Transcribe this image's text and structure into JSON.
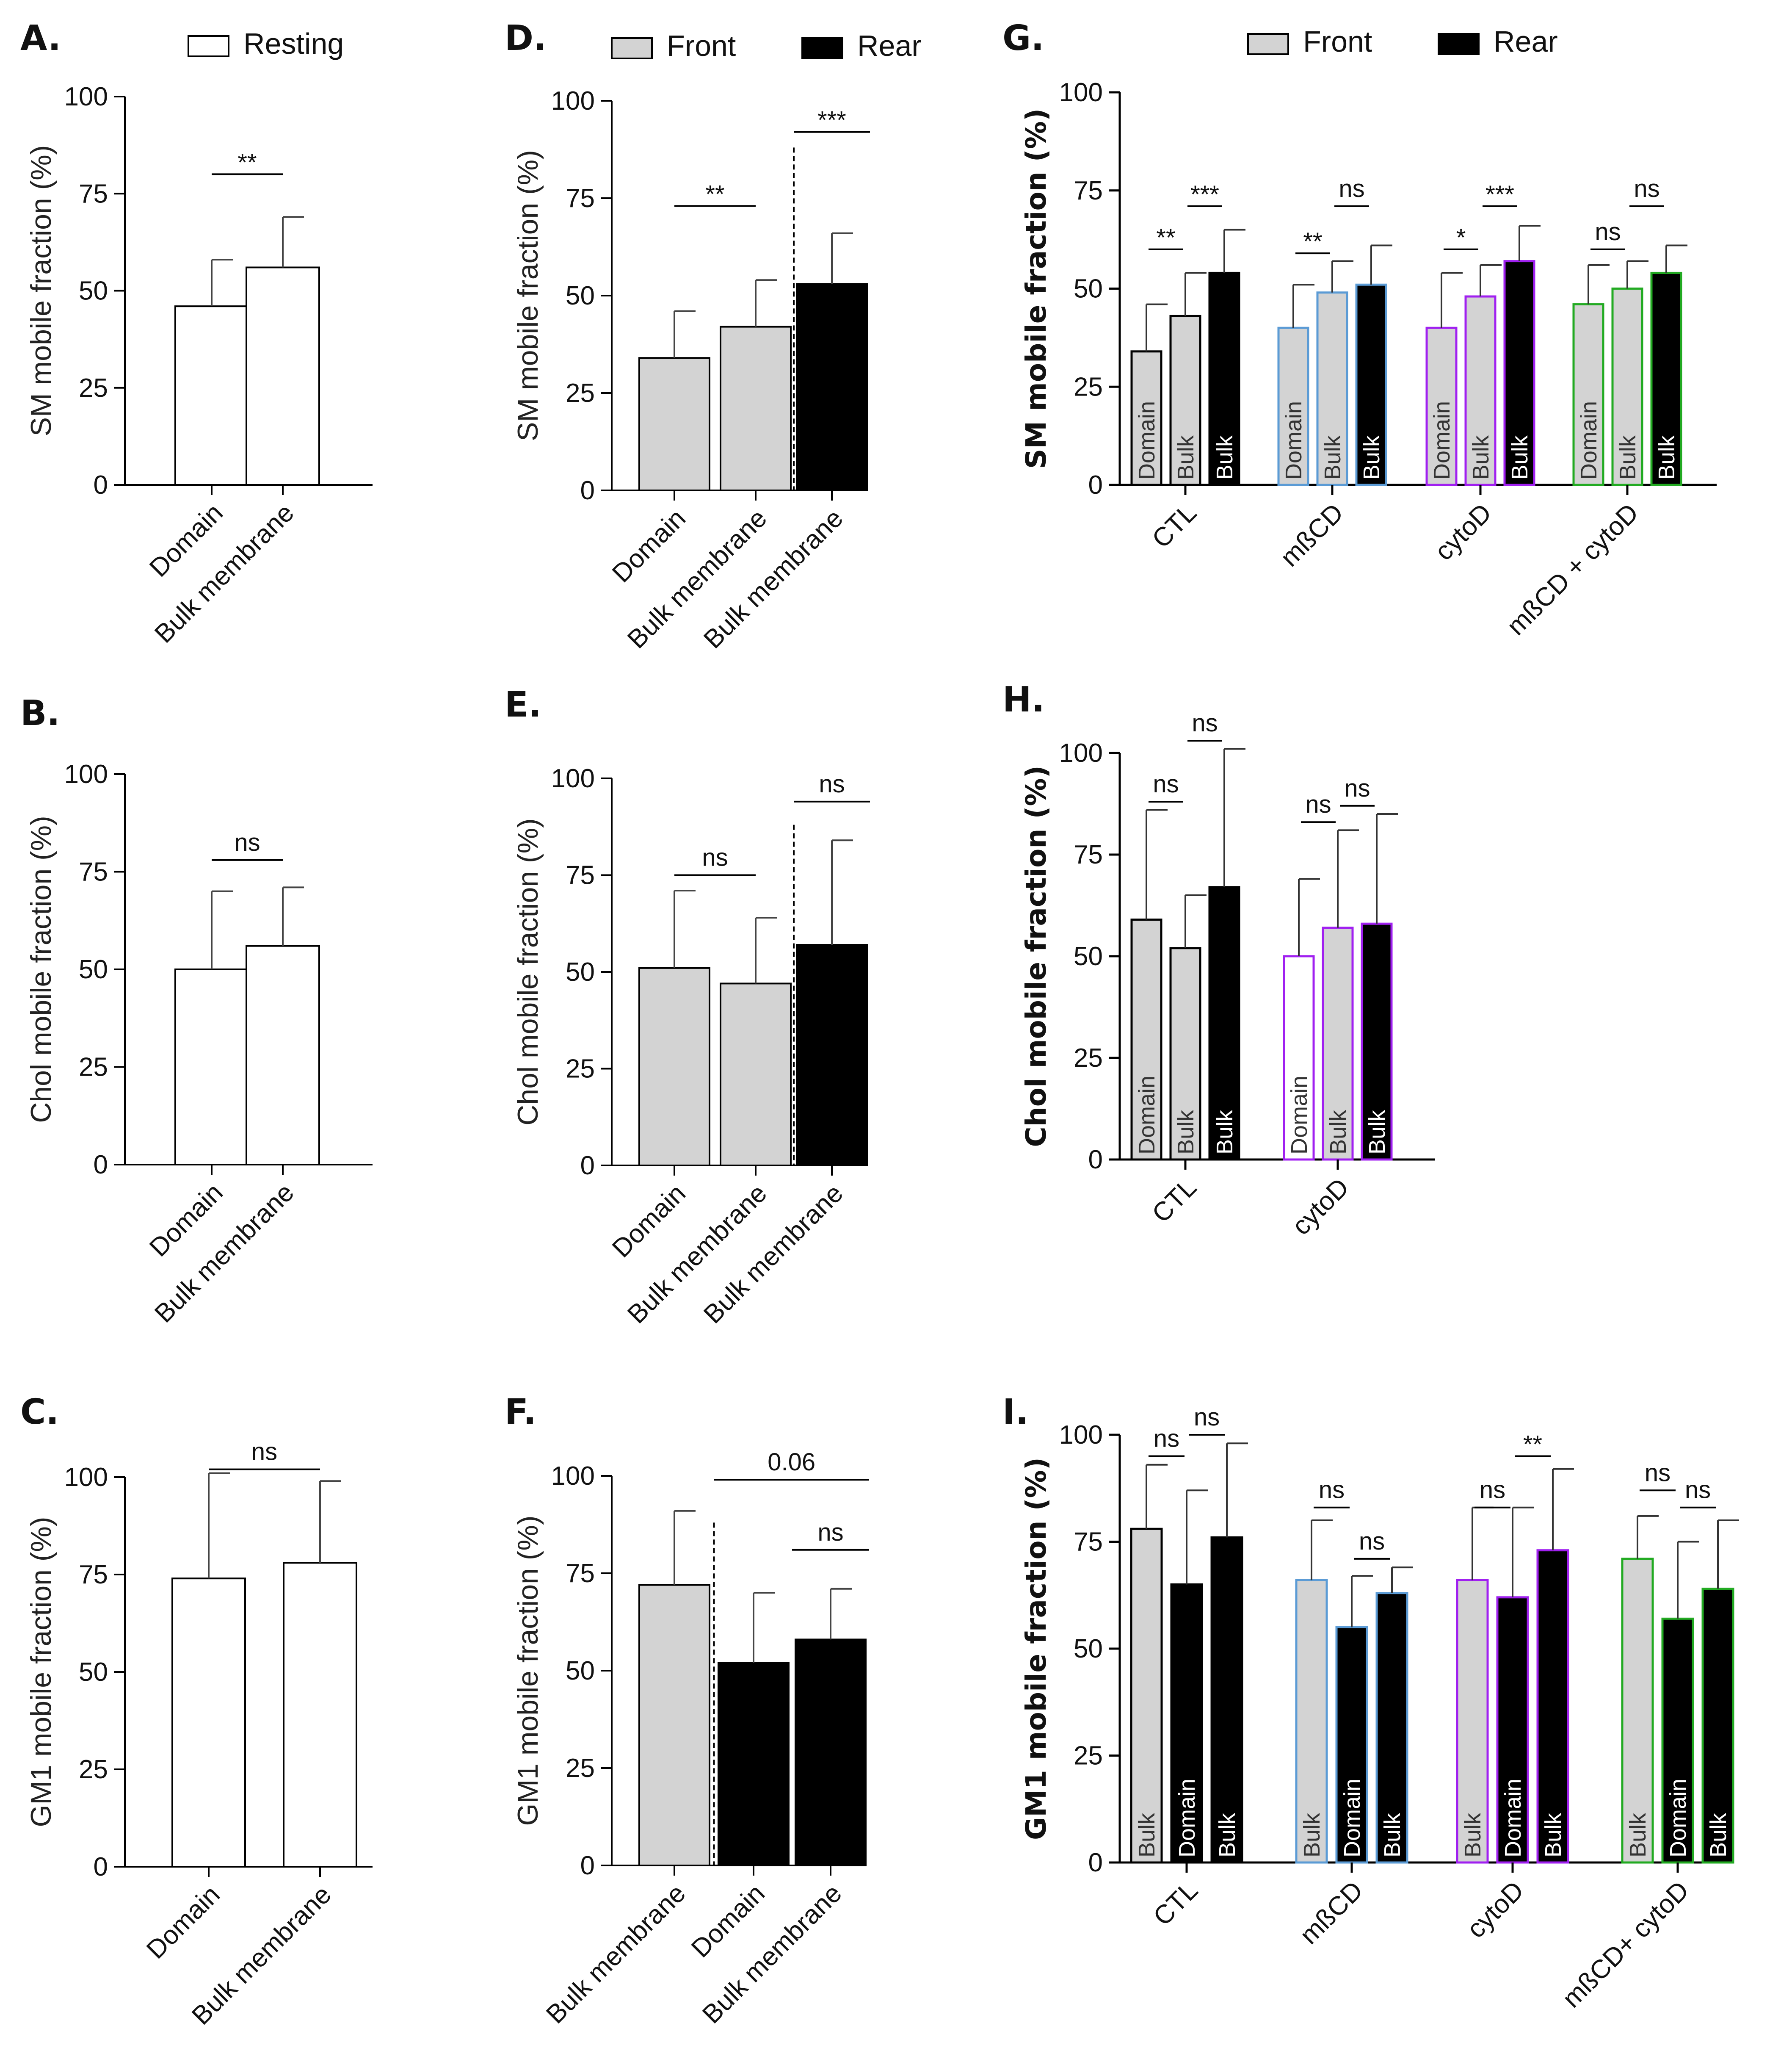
{
  "colors": {
    "front": "#d3d3d3",
    "rear": "#000000",
    "resting": "#ffffff",
    "mbcd": "#5b9bd5",
    "cytod": "#a020f0",
    "combo": "#22aa22"
  },
  "legends": {
    "A": [
      {
        "label": "Resting",
        "fill": "#ffffff"
      }
    ],
    "D": [
      {
        "label": "Front",
        "fill": "#d3d3d3"
      },
      {
        "label": "Rear",
        "fill": "#000000"
      }
    ],
    "G": [
      {
        "label": "Front",
        "fill": "#d3d3d3"
      },
      {
        "label": "Rear",
        "fill": "#000000"
      }
    ]
  },
  "chart_data": [
    {
      "id": "A",
      "label": "A.",
      "type": "bar",
      "ylabel": "SM mobile fraction (%)",
      "ylim": [
        0,
        100
      ],
      "yticks": [
        0,
        25,
        50,
        75,
        100
      ],
      "categories": [
        "Domain",
        "Bulk membrane"
      ],
      "bars": [
        {
          "value": 46,
          "err": 12,
          "fill": "#ffffff"
        },
        {
          "value": 56,
          "err": 13,
          "fill": "#ffffff"
        }
      ],
      "sig": [
        {
          "from": 0,
          "to": 1,
          "text": "**",
          "level": 80
        }
      ]
    },
    {
      "id": "B",
      "label": "B.",
      "type": "bar",
      "ylabel": "Chol mobile fraction (%)",
      "ylim": [
        0,
        100
      ],
      "yticks": [
        0,
        25,
        50,
        75,
        100
      ],
      "categories": [
        "Domain",
        "Bulk membrane"
      ],
      "bars": [
        {
          "value": 50,
          "err": 20,
          "fill": "#ffffff"
        },
        {
          "value": 56,
          "err": 15,
          "fill": "#ffffff"
        }
      ],
      "sig": [
        {
          "from": 0,
          "to": 1,
          "text": "ns",
          "level": 78
        }
      ]
    },
    {
      "id": "C",
      "label": "C.",
      "type": "bar",
      "ylabel": "GM1 mobile fraction (%)",
      "ylim": [
        0,
        100
      ],
      "yticks": [
        0,
        25,
        50,
        75,
        100
      ],
      "categories": [
        "Domain",
        "Bulk membrane"
      ],
      "bars": [
        {
          "value": 74,
          "err": 27,
          "fill": "#ffffff"
        },
        {
          "value": 78,
          "err": 21,
          "fill": "#ffffff"
        }
      ],
      "sig": [
        {
          "from": 0,
          "to": 1,
          "text": "ns",
          "level": 102
        }
      ]
    },
    {
      "id": "D",
      "label": "D.",
      "type": "bar",
      "ylabel": "SM mobile fraction (%)",
      "ylim": [
        0,
        100
      ],
      "yticks": [
        0,
        25,
        50,
        75,
        100
      ],
      "categories": [
        "Domain",
        "Bulk membrane",
        "Bulk membrane"
      ],
      "divider_after": 1,
      "bars": [
        {
          "value": 34,
          "err": 12,
          "fill": "#d3d3d3"
        },
        {
          "value": 42,
          "err": 12,
          "fill": "#d3d3d3"
        },
        {
          "value": 53,
          "err": 13,
          "fill": "#000000"
        }
      ],
      "sig": [
        {
          "from": 0,
          "to": 1,
          "text": "**",
          "level": 73
        },
        {
          "from": 1.5,
          "to": 2.5,
          "text": "***",
          "level": 92
        }
      ]
    },
    {
      "id": "E",
      "label": "E.",
      "type": "bar",
      "ylabel": "Chol mobile fraction (%)",
      "ylim": [
        0,
        100
      ],
      "yticks": [
        0,
        25,
        50,
        75,
        100
      ],
      "categories": [
        "Domain",
        "Bulk membrane",
        "Bulk membrane"
      ],
      "divider_after": 1,
      "bars": [
        {
          "value": 51,
          "err": 20,
          "fill": "#d3d3d3"
        },
        {
          "value": 47,
          "err": 17,
          "fill": "#d3d3d3"
        },
        {
          "value": 57,
          "err": 27,
          "fill": "#000000"
        }
      ],
      "sig": [
        {
          "from": 0,
          "to": 1,
          "text": "ns",
          "level": 75
        },
        {
          "from": 1.5,
          "to": 2.5,
          "text": "ns",
          "level": 94
        }
      ]
    },
    {
      "id": "F",
      "label": "F.",
      "type": "bar",
      "ylabel": "GM1 mobile fraction (%)",
      "ylim": [
        0,
        100
      ],
      "yticks": [
        0,
        25,
        50,
        75,
        100
      ],
      "categories": [
        "Bulk membrane",
        "Domain",
        "Bulk membrane"
      ],
      "divider_after": 0,
      "bars": [
        {
          "value": 72,
          "err": 19,
          "fill": "#d3d3d3"
        },
        {
          "value": 52,
          "err": 18,
          "fill": "#000000"
        },
        {
          "value": 58,
          "err": 13,
          "fill": "#000000"
        }
      ],
      "sig": [
        {
          "from": 0.5,
          "to": 2.5,
          "text": "0.06",
          "level": 99
        },
        {
          "from": 1.5,
          "to": 2.5,
          "text": "ns",
          "level": 81
        }
      ]
    },
    {
      "id": "G",
      "label": "G.",
      "type": "grouped_bar",
      "bold_axis": true,
      "ylabel": "SM mobile fraction (%)",
      "ylim": [
        0,
        100
      ],
      "yticks": [
        0,
        25,
        50,
        75,
        100
      ],
      "groups": [
        {
          "name": "CTL",
          "stroke": "#000000",
          "bars": [
            {
              "value": 34,
              "err": 12,
              "fill": "#d3d3d3",
              "text": "Domain"
            },
            {
              "value": 43,
              "err": 11,
              "fill": "#d3d3d3",
              "text": "Bulk"
            },
            {
              "value": 54,
              "err": 11,
              "fill": "#000000",
              "text": "Bulk"
            }
          ],
          "sig": [
            {
              "from": 0,
              "to": 1,
              "text": "**",
              "level": 60
            },
            {
              "from": 1,
              "to": 2,
              "text": "***",
              "level": 71
            }
          ]
        },
        {
          "name": "mßCD",
          "stroke": "#5b9bd5",
          "bars": [
            {
              "value": 40,
              "err": 11,
              "fill": "#d3d3d3",
              "text": "Domain"
            },
            {
              "value": 49,
              "err": 8,
              "fill": "#d3d3d3",
              "text": "Bulk"
            },
            {
              "value": 51,
              "err": 10,
              "fill": "#000000",
              "text": "Bulk"
            }
          ],
          "sig": [
            {
              "from": 0,
              "to": 1,
              "text": "**",
              "level": 59
            },
            {
              "from": 1,
              "to": 2,
              "text": "ns",
              "level": 71
            }
          ]
        },
        {
          "name": "cytoD",
          "stroke": "#a020f0",
          "bars": [
            {
              "value": 40,
              "err": 14,
              "fill": "#d3d3d3",
              "text": "Domain"
            },
            {
              "value": 48,
              "err": 8,
              "fill": "#d3d3d3",
              "text": "Bulk"
            },
            {
              "value": 57,
              "err": 9,
              "fill": "#000000",
              "text": "Bulk"
            }
          ],
          "sig": [
            {
              "from": 0,
              "to": 1,
              "text": "*",
              "level": 60
            },
            {
              "from": 1,
              "to": 2,
              "text": "***",
              "level": 71
            }
          ]
        },
        {
          "name": "mßCD + cytoD",
          "stroke": "#22aa22",
          "bars": [
            {
              "value": 46,
              "err": 10,
              "fill": "#d3d3d3",
              "text": "Domain"
            },
            {
              "value": 50,
              "err": 7,
              "fill": "#d3d3d3",
              "text": "Bulk"
            },
            {
              "value": 54,
              "err": 7,
              "fill": "#000000",
              "text": "Bulk"
            }
          ],
          "sig": [
            {
              "from": 0,
              "to": 1,
              "text": "ns",
              "level": 60
            },
            {
              "from": 1,
              "to": 2,
              "text": "ns",
              "level": 71
            }
          ]
        }
      ]
    },
    {
      "id": "H",
      "label": "H.",
      "type": "grouped_bar",
      "bold_axis": true,
      "ylabel": "Chol mobile fraction (%)",
      "ylim": [
        0,
        100
      ],
      "yticks": [
        0,
        25,
        50,
        75,
        100
      ],
      "groups": [
        {
          "name": "CTL",
          "stroke": "#000000",
          "bars": [
            {
              "value": 59,
              "err": 27,
              "fill": "#d3d3d3",
              "text": "Domain"
            },
            {
              "value": 52,
              "err": 13,
              "fill": "#d3d3d3",
              "text": "Bulk"
            },
            {
              "value": 67,
              "err": 34,
              "fill": "#000000",
              "text": "Bulk"
            }
          ],
          "sig": [
            {
              "from": 0,
              "to": 1,
              "text": "ns",
              "level": 88
            },
            {
              "from": 1,
              "to": 2,
              "text": "ns",
              "level": 103
            }
          ]
        },
        {
          "name": "cytoD",
          "stroke": "#a020f0",
          "bars": [
            {
              "value": 50,
              "err": 19,
              "fill": "#ffffff",
              "text": "Domain"
            },
            {
              "value": 57,
              "err": 24,
              "fill": "#d3d3d3",
              "text": "Bulk"
            },
            {
              "value": 58,
              "err": 27,
              "fill": "#000000",
              "text": "Bulk"
            }
          ],
          "sig": [
            {
              "from": 0,
              "to": 1,
              "text": "ns",
              "level": 83
            },
            {
              "from": 1,
              "to": 2,
              "text": "ns",
              "level": 87
            }
          ]
        }
      ]
    },
    {
      "id": "I",
      "label": "I.",
      "type": "grouped_bar",
      "bold_axis": true,
      "ylabel": "GM1 mobile fraction (%)",
      "ylim": [
        0,
        100
      ],
      "yticks": [
        0,
        25,
        50,
        75,
        100
      ],
      "groups": [
        {
          "name": "CTL",
          "stroke": "#000000",
          "bars": [
            {
              "value": 78,
              "err": 15,
              "fill": "#d3d3d3",
              "text": "Bulk"
            },
            {
              "value": 65,
              "err": 22,
              "fill": "#000000",
              "text": "Domain"
            },
            {
              "value": 76,
              "err": 22,
              "fill": "#000000",
              "text": "Bulk"
            }
          ],
          "sig": [
            {
              "from": 0,
              "to": 1,
              "text": "ns",
              "level": 95
            },
            {
              "from": 1,
              "to": 2,
              "text": "ns",
              "level": 100
            }
          ]
        },
        {
          "name": "mßCD",
          "stroke": "#5b9bd5",
          "bars": [
            {
              "value": 66,
              "err": 14,
              "fill": "#d3d3d3",
              "text": "Bulk"
            },
            {
              "value": 55,
              "err": 12,
              "fill": "#000000",
              "text": "Domain"
            },
            {
              "value": 63,
              "err": 6,
              "fill": "#000000",
              "text": "Bulk"
            }
          ],
          "sig": [
            {
              "from": 0,
              "to": 1,
              "text": "ns",
              "level": 83
            },
            {
              "from": 1,
              "to": 2,
              "text": "ns",
              "level": 71
            }
          ]
        },
        {
          "name": "cytoD",
          "stroke": "#a020f0",
          "bars": [
            {
              "value": 66,
              "err": 17,
              "fill": "#d3d3d3",
              "text": "Bulk"
            },
            {
              "value": 62,
              "err": 21,
              "fill": "#000000",
              "text": "Domain"
            },
            {
              "value": 73,
              "err": 19,
              "fill": "#000000",
              "text": "Bulk"
            }
          ],
          "sig": [
            {
              "from": 0,
              "to": 1,
              "text": "ns",
              "level": 83
            },
            {
              "from": 1,
              "to": 2,
              "text": "**",
              "level": 95
            }
          ]
        },
        {
          "name": "mßCD+ cytoD",
          "stroke": "#22aa22",
          "bars": [
            {
              "value": 71,
              "err": 10,
              "fill": "#d3d3d3",
              "text": "Bulk"
            },
            {
              "value": 57,
              "err": 18,
              "fill": "#000000",
              "text": "Domain"
            },
            {
              "value": 64,
              "err": 16,
              "fill": "#000000",
              "text": "Bulk"
            }
          ],
          "sig": [
            {
              "from": 0,
              "to": 1,
              "text": "ns",
              "level": 87
            },
            {
              "from": 1,
              "to": 2,
              "text": "ns",
              "level": 83
            }
          ]
        }
      ]
    }
  ]
}
